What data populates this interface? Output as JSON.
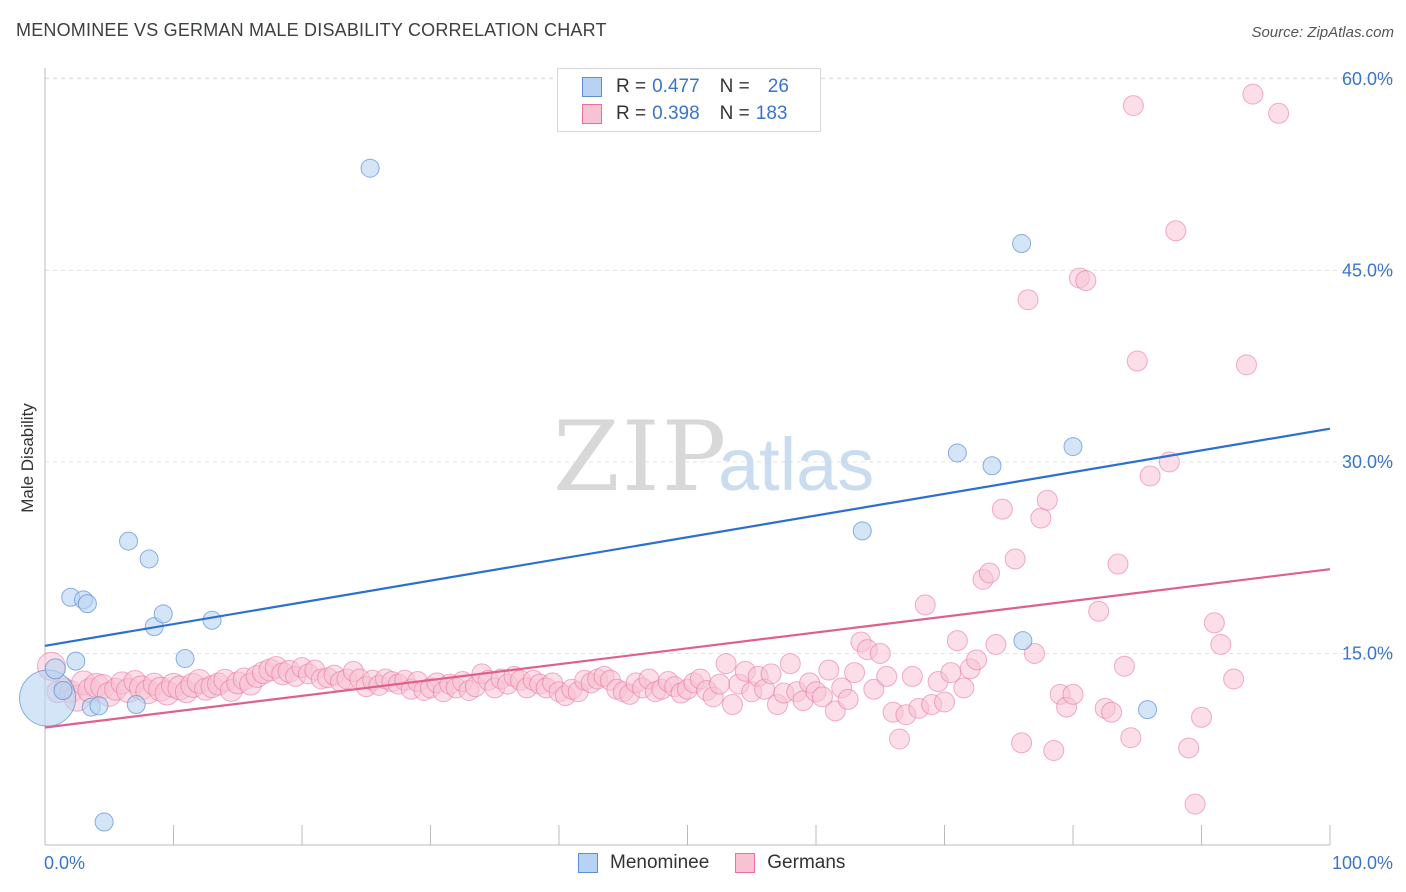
{
  "header": {
    "title": "MENOMINEE VS GERMAN MALE DISABILITY CORRELATION CHART",
    "source": "Source: ZipAtlas.com"
  },
  "watermark": {
    "zip": "ZIP",
    "atlas": "atlas"
  },
  "legend": {
    "rows": [
      {
        "r_label": "R =",
        "r_value": "0.477",
        "n_label": "N =",
        "n_value": "26"
      },
      {
        "r_label": "R =",
        "r_value": "0.398",
        "n_label": "N =",
        "n_value": "183"
      }
    ]
  },
  "colors": {
    "menominee": "#5b8fd6",
    "menominee_fill": "#b8d3f2",
    "germans": "#e8709a",
    "germans_fill": "#f7c3d3",
    "axis_text": "#3a74c9"
  },
  "chart_data": {
    "type": "scatter",
    "title": "MENOMINEE VS GERMAN MALE DISABILITY CORRELATION CHART",
    "xlabel": "",
    "ylabel": "Male Disability",
    "xlim": [
      0,
      100
    ],
    "ylim": [
      0,
      62
    ],
    "x_tick_labels": [
      "0.0%",
      "100.0%"
    ],
    "y_ticks": [
      15,
      30,
      45,
      60
    ],
    "y_tick_labels": [
      "15.0%",
      "30.0%",
      "45.0%",
      "60.0%"
    ],
    "grid": true,
    "legend_position": "top-center",
    "series": [
      {
        "name": "Menominee",
        "r": 0.477,
        "n": 26,
        "trend": {
          "x0": 0,
          "y0": 15.6,
          "x1": 100,
          "y1": 32.6
        },
        "points": [
          [
            0.2,
            11.5,
            28
          ],
          [
            0.8,
            13.8,
            10
          ],
          [
            1.4,
            12.1,
            9
          ],
          [
            2.0,
            19.4,
            9
          ],
          [
            2.4,
            14.4,
            9
          ],
          [
            3.0,
            19.2,
            9
          ],
          [
            3.3,
            18.9,
            9
          ],
          [
            3.6,
            10.8,
            9
          ],
          [
            4.2,
            10.9,
            9
          ],
          [
            4.6,
            1.8,
            9
          ],
          [
            6.5,
            23.8,
            9
          ],
          [
            7.1,
            11.0,
            9
          ],
          [
            8.1,
            22.4,
            9
          ],
          [
            8.5,
            17.1,
            9
          ],
          [
            9.2,
            18.1,
            9
          ],
          [
            10.9,
            14.6,
            9
          ],
          [
            13.0,
            17.6,
            9
          ],
          [
            25.3,
            53.0,
            9
          ],
          [
            63.6,
            24.6,
            9
          ],
          [
            71.0,
            30.7,
            9
          ],
          [
            73.7,
            29.7,
            9
          ],
          [
            76.0,
            47.1,
            9
          ],
          [
            76.1,
            16.0,
            9
          ],
          [
            80.0,
            31.2,
            9
          ],
          [
            85.8,
            10.6,
            9
          ]
        ]
      },
      {
        "name": "Germans",
        "r": 0.398,
        "n": 183,
        "trend": {
          "x0": 0,
          "y0": 9.2,
          "x1": 100,
          "y1": 21.6
        },
        "points": [
          [
            0.5,
            14.0,
            14
          ],
          [
            1.0,
            12.0,
            11
          ],
          [
            1.5,
            12.3,
            10
          ],
          [
            2.0,
            12.0,
            11
          ],
          [
            2.5,
            11.5,
            13
          ],
          [
            3.0,
            12.7,
            12
          ],
          [
            3.5,
            12.1,
            12
          ],
          [
            4.0,
            12.5,
            12
          ],
          [
            4.5,
            12.4,
            12
          ],
          [
            5.0,
            11.8,
            12
          ],
          [
            5.5,
            12.2,
            11
          ],
          [
            6.0,
            12.7,
            11
          ],
          [
            6.5,
            12.1,
            12
          ],
          [
            7.0,
            12.8,
            11
          ],
          [
            7.5,
            12.3,
            12
          ],
          [
            8.0,
            12.0,
            12
          ],
          [
            8.5,
            12.6,
            11
          ],
          [
            9.0,
            12.2,
            12
          ],
          [
            9.5,
            11.9,
            12
          ],
          [
            10.0,
            12.5,
            12
          ],
          [
            10.5,
            12.3,
            12
          ],
          [
            11.0,
            12.0,
            11
          ],
          [
            11.5,
            12.5,
            12
          ],
          [
            12.0,
            12.8,
            12
          ],
          [
            12.5,
            12.2,
            11
          ],
          [
            13.0,
            12.4,
            11
          ],
          [
            13.5,
            12.6,
            11
          ],
          [
            14.0,
            12.9,
            11
          ],
          [
            14.5,
            12.1,
            11
          ],
          [
            15.0,
            12.7,
            11
          ],
          [
            15.5,
            13.0,
            11
          ],
          [
            16.0,
            12.6,
            11
          ],
          [
            16.5,
            13.2,
            11
          ],
          [
            17.0,
            13.5,
            11
          ],
          [
            17.5,
            13.7,
            11
          ],
          [
            18.0,
            13.9,
            11
          ],
          [
            18.5,
            13.4,
            11
          ],
          [
            19.0,
            13.6,
            11
          ],
          [
            19.5,
            13.2,
            10
          ],
          [
            20.0,
            13.9,
            10
          ],
          [
            20.5,
            13.4,
            10
          ],
          [
            21.0,
            13.7,
            10
          ],
          [
            21.5,
            13.0,
            10
          ],
          [
            22.0,
            13.1,
            10
          ],
          [
            22.5,
            13.3,
            10
          ],
          [
            23.0,
            12.8,
            10
          ],
          [
            23.5,
            13.0,
            10
          ],
          [
            24.0,
            13.6,
            10
          ],
          [
            24.5,
            13.0,
            10
          ],
          [
            25.0,
            12.4,
            10
          ],
          [
            25.5,
            12.9,
            10
          ],
          [
            26.0,
            12.5,
            10
          ],
          [
            26.5,
            13.0,
            10
          ],
          [
            27.0,
            12.8,
            10
          ],
          [
            27.5,
            12.6,
            10
          ],
          [
            28.0,
            12.9,
            10
          ],
          [
            28.5,
            12.2,
            10
          ],
          [
            29.0,
            12.8,
            10
          ],
          [
            29.5,
            12.1,
            10
          ],
          [
            30.0,
            12.3,
            10
          ],
          [
            30.5,
            12.7,
            10
          ],
          [
            31.0,
            12.0,
            10
          ],
          [
            31.5,
            12.6,
            10
          ],
          [
            32.0,
            12.3,
            10
          ],
          [
            32.5,
            12.8,
            10
          ],
          [
            33.0,
            12.1,
            10
          ],
          [
            33.5,
            12.4,
            10
          ],
          [
            34.0,
            13.4,
            10
          ],
          [
            34.5,
            12.9,
            10
          ],
          [
            35.0,
            12.3,
            10
          ],
          [
            35.5,
            13.0,
            10
          ],
          [
            36.0,
            12.6,
            10
          ],
          [
            36.5,
            13.2,
            10
          ],
          [
            37.0,
            12.9,
            10
          ],
          [
            37.5,
            12.3,
            10
          ],
          [
            38.0,
            12.9,
            10
          ],
          [
            38.5,
            12.6,
            10
          ],
          [
            39.0,
            12.3,
            10
          ],
          [
            39.5,
            12.7,
            10
          ],
          [
            40.0,
            12.0,
            10
          ],
          [
            40.5,
            11.7,
            10
          ],
          [
            41.0,
            12.2,
            10
          ],
          [
            41.5,
            12.0,
            10
          ],
          [
            42.0,
            12.9,
            10
          ],
          [
            42.5,
            12.7,
            10
          ],
          [
            43.0,
            13.0,
            10
          ],
          [
            43.5,
            13.2,
            10
          ],
          [
            44.0,
            12.9,
            10
          ],
          [
            44.5,
            12.2,
            10
          ],
          [
            45.0,
            12.0,
            10
          ],
          [
            45.5,
            11.8,
            10
          ],
          [
            46.0,
            12.7,
            10
          ],
          [
            46.5,
            12.3,
            10
          ],
          [
            47.0,
            13.0,
            10
          ],
          [
            47.5,
            12.0,
            10
          ],
          [
            48.0,
            12.2,
            10
          ],
          [
            48.5,
            12.8,
            10
          ],
          [
            49.0,
            12.4,
            10
          ],
          [
            49.5,
            11.9,
            10
          ],
          [
            50.0,
            12.2,
            10
          ],
          [
            50.5,
            12.7,
            10
          ],
          [
            51.0,
            13.0,
            10
          ],
          [
            51.5,
            12.1,
            10
          ],
          [
            52.0,
            11.6,
            10
          ],
          [
            52.5,
            12.6,
            10
          ],
          [
            53.0,
            14.2,
            10
          ],
          [
            53.5,
            11.0,
            10
          ],
          [
            54.0,
            12.6,
            10
          ],
          [
            54.5,
            13.6,
            10
          ],
          [
            55.0,
            12.0,
            10
          ],
          [
            55.5,
            13.2,
            10
          ],
          [
            56.0,
            12.2,
            10
          ],
          [
            56.5,
            13.4,
            10
          ],
          [
            57.0,
            11.0,
            10
          ],
          [
            57.5,
            11.9,
            10
          ],
          [
            58.0,
            14.2,
            10
          ],
          [
            58.5,
            12.0,
            10
          ],
          [
            59.0,
            11.3,
            10
          ],
          [
            59.5,
            12.7,
            10
          ],
          [
            60.0,
            12.0,
            10
          ],
          [
            60.5,
            11.6,
            10
          ],
          [
            61.0,
            13.7,
            10
          ],
          [
            61.5,
            10.5,
            10
          ],
          [
            62.0,
            12.3,
            10
          ],
          [
            62.5,
            11.4,
            10
          ],
          [
            63.0,
            13.5,
            10
          ],
          [
            63.5,
            15.9,
            10
          ],
          [
            64.0,
            15.3,
            10
          ],
          [
            64.5,
            12.2,
            10
          ],
          [
            65.0,
            15.0,
            10
          ],
          [
            65.5,
            13.2,
            10
          ],
          [
            66.0,
            10.4,
            10
          ],
          [
            66.5,
            8.3,
            10
          ],
          [
            67.0,
            10.2,
            10
          ],
          [
            67.5,
            13.2,
            10
          ],
          [
            68.0,
            10.7,
            10
          ],
          [
            68.5,
            18.8,
            10
          ],
          [
            69.0,
            11.0,
            10
          ],
          [
            69.5,
            12.8,
            10
          ],
          [
            70.0,
            11.2,
            10
          ],
          [
            70.5,
            13.5,
            10
          ],
          [
            71.0,
            16.0,
            10
          ],
          [
            71.5,
            12.3,
            10
          ],
          [
            72.0,
            13.8,
            10
          ],
          [
            72.5,
            14.5,
            10
          ],
          [
            73.0,
            20.8,
            10
          ],
          [
            73.5,
            21.3,
            10
          ],
          [
            74.0,
            15.7,
            10
          ],
          [
            74.5,
            26.3,
            10
          ],
          [
            75.5,
            22.4,
            10
          ],
          [
            76.0,
            8.0,
            10
          ],
          [
            76.5,
            42.7,
            10
          ],
          [
            77.0,
            15.0,
            10
          ],
          [
            77.5,
            25.6,
            10
          ],
          [
            78.0,
            27.0,
            10
          ],
          [
            78.5,
            7.4,
            10
          ],
          [
            79.0,
            11.8,
            10
          ],
          [
            79.5,
            10.8,
            10
          ],
          [
            80.0,
            11.8,
            10
          ],
          [
            80.5,
            44.4,
            10
          ],
          [
            81.0,
            44.2,
            10
          ],
          [
            82.0,
            18.3,
            10
          ],
          [
            82.5,
            10.7,
            10
          ],
          [
            83.0,
            10.4,
            10
          ],
          [
            83.5,
            22.0,
            10
          ],
          [
            84.0,
            14.0,
            10
          ],
          [
            84.5,
            8.4,
            10
          ],
          [
            84.7,
            57.9,
            10
          ],
          [
            85.0,
            37.9,
            10
          ],
          [
            86.0,
            28.9,
            10
          ],
          [
            87.5,
            30.0,
            10
          ],
          [
            88.0,
            48.1,
            10
          ],
          [
            89.0,
            7.6,
            10
          ],
          [
            89.5,
            3.2,
            10
          ],
          [
            90.0,
            10.0,
            10
          ],
          [
            91.0,
            17.4,
            10
          ],
          [
            91.5,
            15.7,
            10
          ],
          [
            92.5,
            13.0,
            10
          ],
          [
            93.5,
            37.6,
            10
          ],
          [
            94.0,
            58.8,
            10
          ],
          [
            96.0,
            57.3,
            10
          ]
        ]
      }
    ]
  }
}
